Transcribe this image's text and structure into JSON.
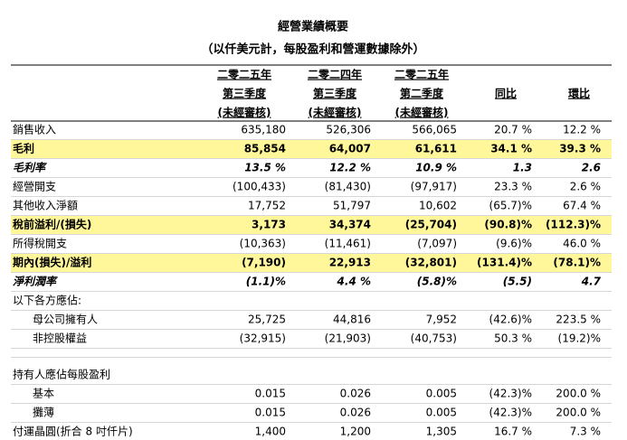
{
  "header": {
    "title": "經營業績概要",
    "subtitle": "（以仟美元計，每股盈利和營運數據除外）"
  },
  "table": {
    "columns": [
      [
        "二零二五年",
        "第三季度",
        "(未經審核)"
      ],
      [
        "二零二四年",
        "第三季度",
        "(未經審核)"
      ],
      [
        "二零二五年",
        "第二季度",
        "(未經審核)"
      ],
      [
        "同比"
      ],
      [
        "環比"
      ]
    ],
    "rows": [
      [
        "銷售收入",
        "635,180",
        "526,306",
        "566,065",
        "20.7 %",
        "12.2 %"
      ],
      [
        "毛利",
        "85,854",
        "64,007",
        "61,611",
        "34.1 %",
        "39.3 %"
      ],
      [
        "毛利率",
        "13.5 %",
        "12.2 %",
        "10.9 %",
        "1.3",
        "2.6"
      ],
      [
        "經營開支",
        "(100,433)",
        "(81,430)",
        "(97,917)",
        "23.3 %",
        "2.6 %"
      ],
      [
        "其他收入淨額",
        "17,752",
        "51,797",
        "10,602",
        "(65.7)%",
        "67.4 %"
      ],
      [
        "稅前溢利/(損失)",
        "3,173",
        "34,374",
        "(25,704)",
        "(90.8)%",
        "(112.3)%"
      ],
      [
        "所得稅開支",
        "(10,363)",
        "(11,461)",
        "(7,097)",
        "(9.6)%",
        "46.0 %"
      ],
      [
        "期內(損失)/溢利",
        "(7,190)",
        "22,913",
        "(32,801)",
        "(131.4)%",
        "(78.1)%"
      ],
      [
        "淨利潤率",
        "(1.1)%",
        "4.4 %",
        "(5.8)%",
        "(5.5)",
        "4.7"
      ],
      [
        "以下各方應佔:"
      ],
      [
        "母公司擁有人",
        "25,725",
        "44,816",
        "7,952",
        "(42.6)%",
        "223.5 %"
      ],
      [
        "非控股權益",
        "(32,915)",
        "(21,903)",
        "(40,753)",
        "50.3 %",
        "(19.2)%"
      ],
      [
        "持有人應佔每股盈利"
      ],
      [
        "基本",
        "0.015",
        "0.026",
        "0.005",
        "(42.3)%",
        "200.0 %"
      ],
      [
        "攤薄",
        "0.015",
        "0.026",
        "0.005",
        "(42.3)%",
        "200.0 %"
      ],
      [
        "付運晶圓(折合 8 吋仟片)",
        "1,400",
        "1,200",
        "1,305",
        "16.7 %",
        "7.3 %"
      ]
    ]
  }
}
